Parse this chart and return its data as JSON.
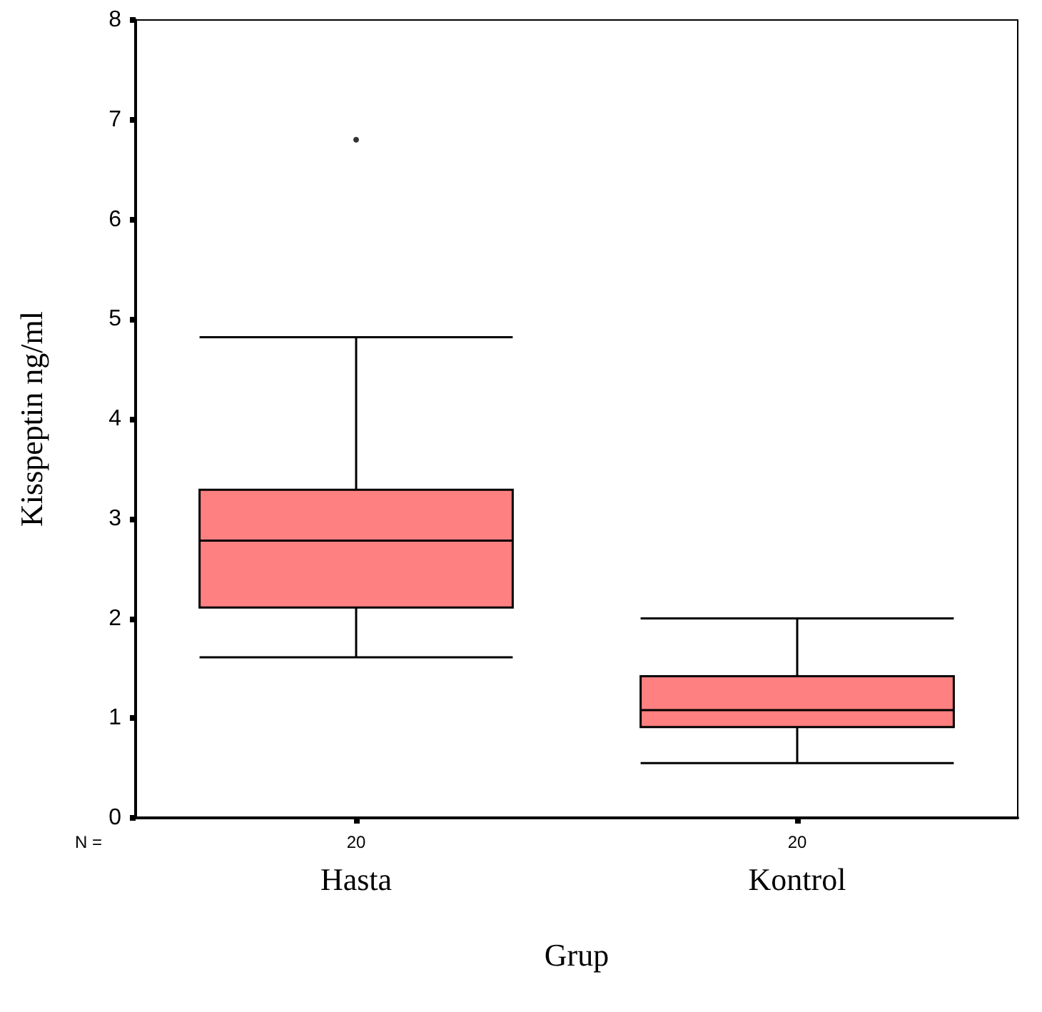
{
  "chart_data": {
    "type": "box",
    "xlabel": "Grup",
    "ylabel": "Kisspeptin ng/ml",
    "categories": [
      "Hasta",
      "Kontrol"
    ],
    "series": [
      {
        "color": "#ff8080",
        "boxes": [
          {
            "low": 1.61,
            "q1": 2.11,
            "median": 2.78,
            "q3": 3.29,
            "high": 4.82,
            "outliers": [
              6.8
            ]
          },
          {
            "low": 0.55,
            "q1": 0.91,
            "median": 1.08,
            "q3": 1.42,
            "high": 2.0
          }
        ]
      }
    ],
    "ylim": [
      0,
      8
    ],
    "yticks": [
      0,
      1,
      2,
      3,
      4,
      5,
      6,
      7,
      8
    ],
    "grid": false,
    "annotations": [
      "N =",
      "20",
      "20"
    ]
  }
}
